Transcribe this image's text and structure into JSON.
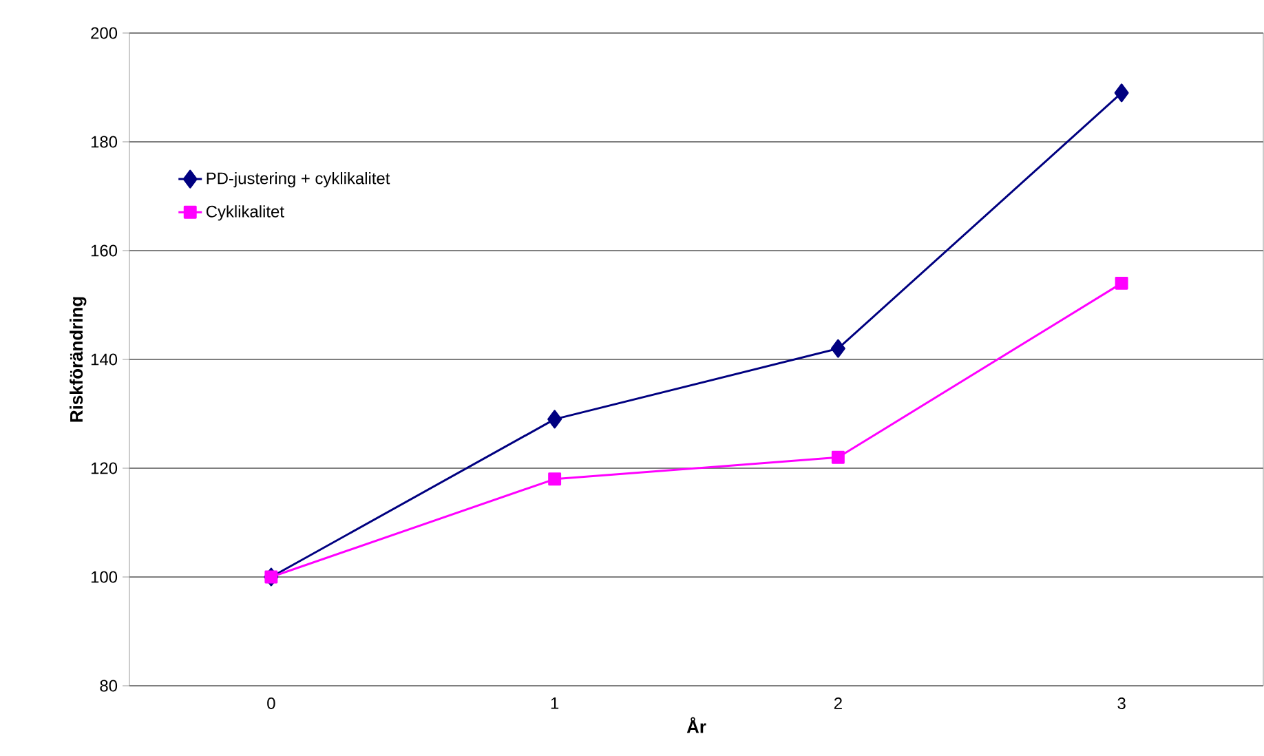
{
  "chart_data": {
    "type": "line",
    "xlabel": "År",
    "ylabel": "Riskförändring",
    "categories": [
      "0",
      "1",
      "2",
      "3"
    ],
    "series": [
      {
        "name": "PD-justering + cyklikalitet",
        "color": "#000080",
        "marker": "diamond",
        "values": [
          100,
          129,
          142,
          189
        ]
      },
      {
        "name": "Cyklikalitet",
        "color": "#ff00ff",
        "marker": "square",
        "values": [
          100,
          118,
          122,
          154
        ]
      }
    ],
    "ylim": [
      80,
      200
    ],
    "yticks": [
      80,
      100,
      120,
      140,
      160,
      180,
      200
    ],
    "grid": "y",
    "legend": "top left",
    "line_style": "solid"
  }
}
